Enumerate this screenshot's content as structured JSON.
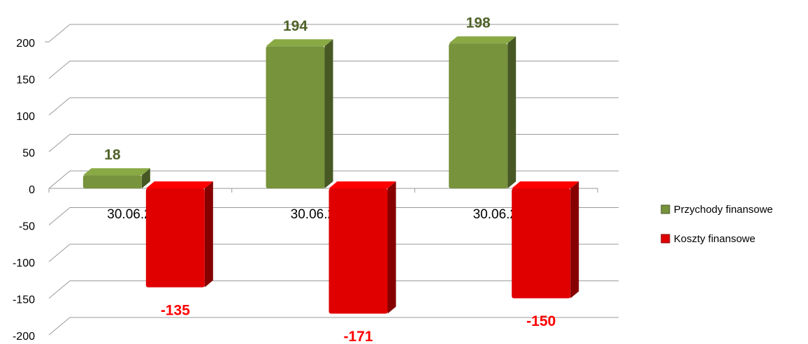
{
  "chart_data": {
    "type": "bar",
    "categories": [
      "30.06.2010",
      "30.06.2011",
      "30.06.2012"
    ],
    "series": [
      {
        "name": "Przychody finansowe",
        "color": "#77933c",
        "label_color": "#4f6228",
        "values": [
          18,
          194,
          198
        ]
      },
      {
        "name": "Koszty finansowe",
        "color": "#e00000",
        "label_color": "#ff0000",
        "values": [
          -135,
          -171,
          -150
        ]
      }
    ],
    "ylim": [
      -200,
      200
    ],
    "yticks": [
      -200,
      -150,
      -100,
      -50,
      0,
      50,
      100,
      150,
      200
    ],
    "grid": true,
    "legend": "right"
  }
}
